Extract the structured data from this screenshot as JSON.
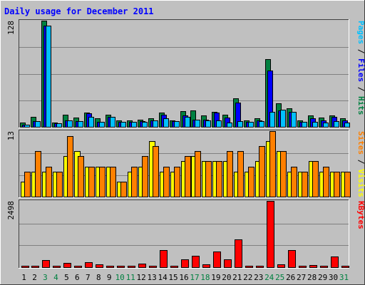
{
  "chart_data": {
    "type": "bar",
    "title": "Daily usage for December 2011",
    "categories": [
      "1",
      "2",
      "3",
      "4",
      "5",
      "6",
      "7",
      "8",
      "9",
      "10",
      "11",
      "12",
      "13",
      "14",
      "15",
      "16",
      "17",
      "18",
      "19",
      "20",
      "21",
      "22",
      "23",
      "24",
      "25",
      "26",
      "27",
      "28",
      "29",
      "30",
      "31"
    ],
    "weekend_days": [
      "3",
      "4",
      "10",
      "11",
      "17",
      "18",
      "24",
      "25",
      "31"
    ],
    "panels": [
      {
        "name": "hits-files-pages",
        "max_label": "128",
        "ylim": [
          0,
          128
        ],
        "legend": [
          "Pages",
          "Files",
          "Hits"
        ],
        "series": [
          {
            "name": "Hits",
            "color": "#008040",
            "values": [
              5,
              12,
              128,
              5,
              15,
              11,
              17,
              10,
              15,
              8,
              8,
              9,
              10,
              17,
              8,
              19,
              20,
              14,
              18,
              15,
              34,
              8,
              10,
              82,
              28,
              22,
              8,
              14,
              11,
              14,
              10
            ]
          },
          {
            "name": "Files",
            "color": "#0000ff",
            "values": [
              3,
              7,
              122,
              4,
              8,
              7,
              16,
              6,
              12,
              6,
              6,
              7,
              8,
              15,
              7,
              14,
              9,
              9,
              17,
              11,
              29,
              6,
              8,
              68,
              20,
              18,
              6,
              10,
              8,
              12,
              8
            ]
          },
          {
            "name": "Pages",
            "color": "#00c0ff",
            "values": [
              3,
              7,
              122,
              4,
              8,
              7,
              12,
              6,
              12,
              6,
              6,
              6,
              8,
              10,
              7,
              12,
              9,
              8,
              8,
              5,
              7,
              6,
              7,
              18,
              21,
              18,
              6,
              6,
              5,
              7,
              5
            ]
          }
        ]
      },
      {
        "name": "visits-sites",
        "max_label": "13",
        "ylim": [
          0,
          13
        ],
        "legend": [
          "Sites",
          "Visits"
        ],
        "series": [
          {
            "name": "Visits",
            "color": "#ffff00",
            "values": [
              3,
              5,
              5,
              5,
              8,
              9,
              6,
              6,
              6,
              3,
              5,
              6,
              11,
              5,
              5,
              7,
              8,
              7,
              7,
              7,
              5,
              5,
              7,
              11,
              9,
              5,
              5,
              7,
              5,
              5,
              5
            ]
          },
          {
            "name": "Sites",
            "color": "#ff8000",
            "values": [
              5,
              9,
              6,
              5,
              12,
              8,
              6,
              6,
              6,
              3,
              6,
              8,
              10,
              6,
              6,
              8,
              9,
              7,
              7,
              9,
              9,
              6,
              10,
              13,
              9,
              6,
              5,
              7,
              6,
              5,
              5
            ]
          }
        ]
      },
      {
        "name": "kbytes",
        "max_label": "2498",
        "ylim": [
          0,
          2498
        ],
        "legend": [
          "KBytes"
        ],
        "series": [
          {
            "name": "KBytes",
            "color": "#ff0000",
            "values": [
              0,
              20,
              270,
              10,
              150,
              50,
              180,
              120,
              60,
              10,
              50,
              140,
              10,
              640,
              60,
              300,
              430,
              120,
              580,
              290,
              1060,
              20,
              20,
              2498,
              120,
              640,
              40,
              80,
              40,
              390,
              60
            ]
          }
        ]
      }
    ]
  }
}
